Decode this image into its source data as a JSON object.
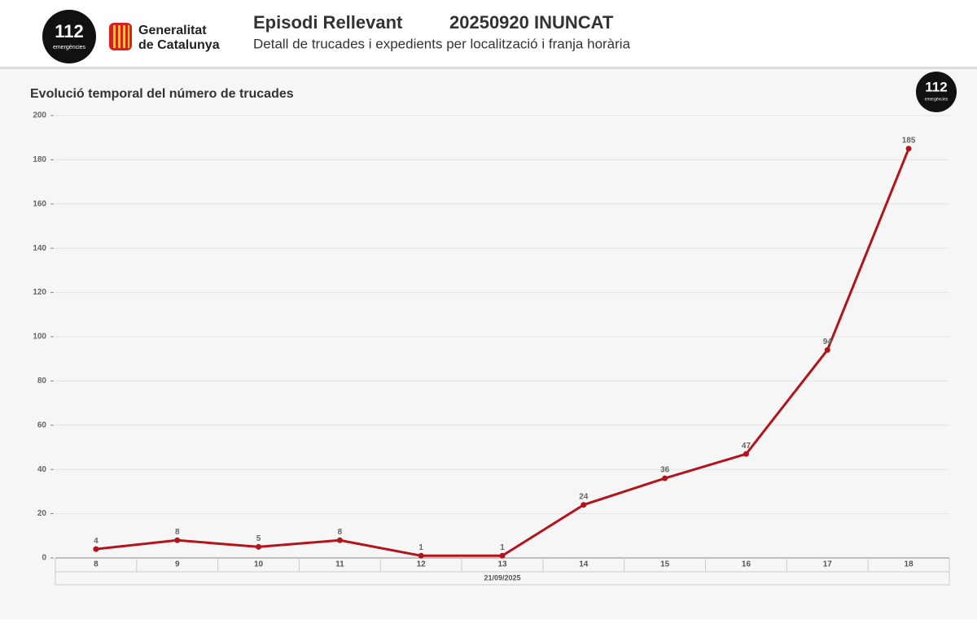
{
  "header": {
    "logo_112": {
      "number": "112",
      "caption": "emergències"
    },
    "gencat": {
      "line1": "Generalitat",
      "line2": "de Catalunya"
    },
    "title": "Episodi Rellevant",
    "episode": "20250920 INUNCAT",
    "subtitle": "Detall de trucades i expedients per localització i franja horària"
  },
  "chart_logo": {
    "number": "112",
    "caption": "emergències"
  },
  "chart_data": {
    "type": "line",
    "title": "Evolució temporal del número de trucades",
    "categories": [
      "8",
      "9",
      "10",
      "11",
      "12",
      "13",
      "14",
      "15",
      "16",
      "17",
      "18"
    ],
    "values": [
      4,
      8,
      5,
      8,
      1,
      1,
      24,
      36,
      47,
      94,
      185
    ],
    "color": "#b3141c",
    "x_group_label": "21/09/2025",
    "ylim": [
      0,
      200
    ],
    "yticks": [
      0,
      20,
      40,
      60,
      80,
      100,
      120,
      140,
      160,
      180,
      200
    ],
    "grid": true
  }
}
